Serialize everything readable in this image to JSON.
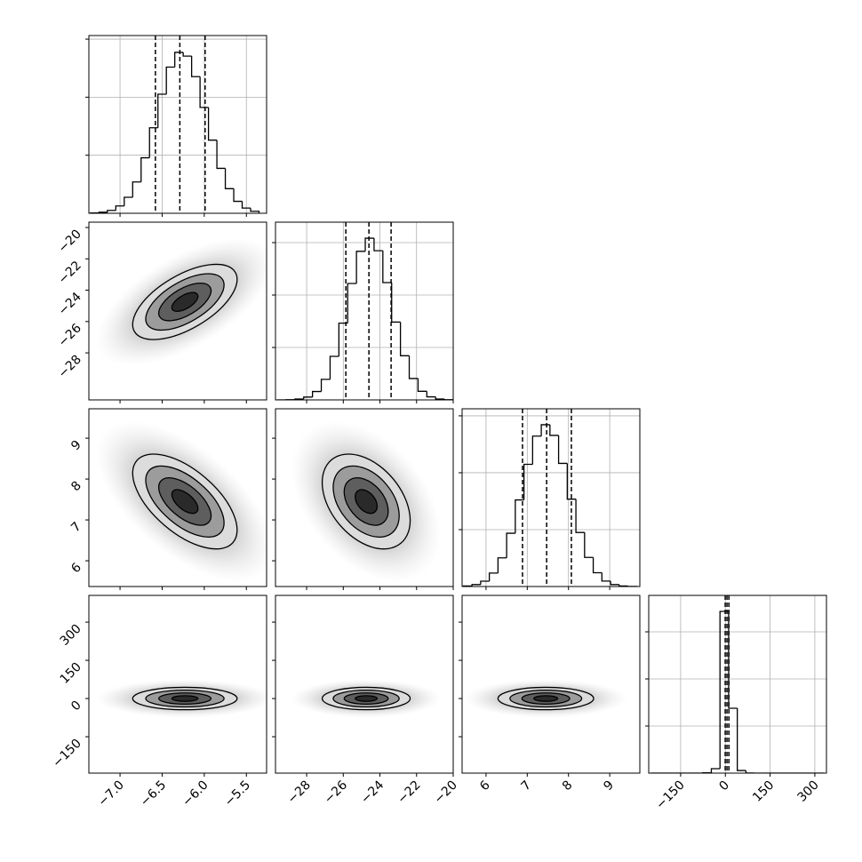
{
  "chart_data": {
    "type": "corner",
    "grid": true,
    "levels": [
      0.5,
      1,
      1.5,
      2
    ],
    "parameters": [
      {
        "mean": -6.23,
        "sd": 0.31,
        "xlim": [
          -7.37,
          -5.26
        ],
        "ylim": [
          -7.37,
          -5.26
        ],
        "ticks": [
          {
            "value": -7.0,
            "label": "−7.0"
          },
          {
            "value": -6.5,
            "label": "−6.5"
          },
          {
            "value": -6.0,
            "label": "−6.0"
          },
          {
            "value": -5.5,
            "label": "−5.5"
          }
        ],
        "hist": {
          "bins": [
            -7.35,
            -7.25,
            -7.15,
            -7.05,
            -6.95,
            -6.85,
            -6.75,
            -6.65,
            -6.55,
            -6.45,
            -6.35,
            -6.25,
            -6.15,
            -6.05,
            -5.95,
            -5.85,
            -5.75,
            -5.65,
            -5.55,
            -5.45,
            -5.35
          ],
          "counts": [
            3,
            9,
            25,
            63,
            138,
            270,
            478,
            737,
            1026,
            1259,
            1386,
            1354,
            1177,
            912,
            630,
            387,
            212,
            103,
            45,
            17
          ],
          "ylim": [
            0,
            1531
          ],
          "yticks": [
            500,
            1000,
            1500
          ],
          "quantiles": [
            -6.58,
            -6.29,
            -5.99
          ]
        }
      },
      {
        "mean": -24.75,
        "sd": 1.2,
        "xlim": [
          -29.7,
          -20.0
        ],
        "ylim": [
          -31.0,
          -19.66
        ],
        "ticks": [
          {
            "value": -28,
            "label": "−28"
          },
          {
            "value": -26,
            "label": "−26"
          },
          {
            "value": -24,
            "label": "−24"
          },
          {
            "value": -22,
            "label": "−22"
          },
          {
            "value": -20,
            "label": "−20"
          }
        ],
        "hist": {
          "bins": [
            -29.6,
            -29.12,
            -28.64,
            -28.16,
            -27.68,
            -27.2,
            -26.72,
            -26.24,
            -25.76,
            -25.28,
            -24.8,
            -24.32,
            -23.84,
            -23.36,
            -22.88,
            -22.4,
            -21.92,
            -21.44,
            -20.96,
            -20.48,
            -20.0
          ],
          "counts": [
            0,
            2,
            8,
            27,
            80,
            196,
            415,
            732,
            1110,
            1417,
            1542,
            1423,
            1119,
            742,
            421,
            204,
            82,
            29,
            8,
            2
          ],
          "ylim": [
            0,
            1695
          ],
          "yticks": [
            500,
            1000,
            1500
          ],
          "quantiles": [
            -25.86,
            -24.6,
            -23.39
          ]
        }
      },
      {
        "mean": 7.45,
        "sd": 0.58,
        "xlim": [
          5.42,
          9.73
        ],
        "ylim": [
          5.37,
          9.72
        ],
        "ticks": [
          6,
          7,
          8,
          9
        ],
        "hist": {
          "bins": [
            5.45,
            5.66,
            5.87,
            6.08,
            6.29,
            6.5,
            6.71,
            6.92,
            7.13,
            7.34,
            7.55,
            7.76,
            7.97,
            8.18,
            8.39,
            8.6,
            8.81,
            9.02,
            9.23,
            9.44,
            9.65
          ],
          "counts": [
            5,
            17,
            47,
            118,
            252,
            468,
            761,
            1074,
            1322,
            1422,
            1328,
            1082,
            768,
            475,
            256,
            121,
            48,
            17,
            5,
            1
          ],
          "ylim": [
            0,
            1562
          ],
          "yticks": [
            500,
            1000,
            1500
          ],
          "quantiles": [
            6.885,
            7.47,
            8.07
          ]
        }
      },
      {
        "mean": 0,
        "sd": 22,
        "xlim": [
          -257,
          339
        ],
        "ylim": [
          -293,
          405
        ],
        "ticks": [
          {
            "value": -150,
            "label": "−150"
          },
          0,
          150,
          300
        ],
        "hist": {
          "bins": [
            -250,
            -221,
            -192,
            -163,
            -134,
            -105,
            -76,
            -47,
            -18,
            11,
            40,
            69,
            98,
            127,
            156,
            185,
            214,
            243,
            272,
            301,
            330
          ],
          "counts": [
            0,
            0,
            0,
            0,
            0,
            0,
            12,
            190,
            6868,
            2755,
            110,
            6,
            0,
            0,
            0,
            0,
            0,
            0,
            0,
            0
          ],
          "ylim": [
            0,
            7547
          ],
          "yticks": [
            2000,
            4000,
            6000
          ],
          "quantiles": [
            -0.5,
            5.4,
            11.8
          ]
        }
      }
    ],
    "panels2d": [
      {
        "x": 0,
        "y": 1,
        "corr": 0.6
      },
      {
        "x": 0,
        "y": 2,
        "corr": -0.6
      },
      {
        "x": 1,
        "y": 2,
        "corr": -0.4
      },
      {
        "x": 0,
        "y": 3,
        "corr": 0
      },
      {
        "x": 1,
        "y": 3,
        "corr": 0
      },
      {
        "x": 2,
        "y": 3,
        "corr": 0
      }
    ]
  }
}
